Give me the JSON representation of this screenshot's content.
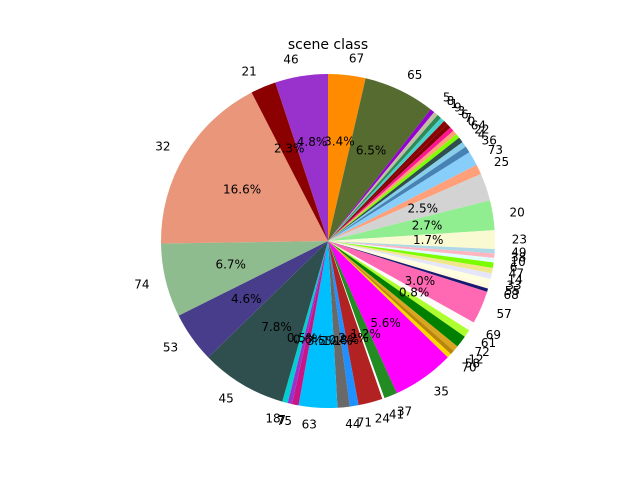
{
  "chart_data": {
    "type": "pie",
    "title": "scene class",
    "start_angle_deg": 90,
    "direction": "clockwise",
    "slices": [
      {
        "label": "67",
        "value": 3.4,
        "pct": "3.4%",
        "color": "#ff8c00",
        "show_pct": true
      },
      {
        "label": "65",
        "value": 6.5,
        "pct": "6.5%",
        "color": "#556b2f",
        "show_pct": true
      },
      {
        "label": "5",
        "value": 0.4,
        "pct": "0.4%",
        "color": "#9400d3",
        "show_pct": false
      },
      {
        "label": "8",
        "value": 0.4,
        "pct": "0.4%",
        "color": "#c0c0a0",
        "show_pct": false
      },
      {
        "label": "1",
        "value": 0.4,
        "pct": "0.4%",
        "color": "#2e8b57",
        "show_pct": false
      },
      {
        "label": "9",
        "value": 0.4,
        "pct": "0.4%",
        "color": "#48d1cc",
        "show_pct": false
      },
      {
        "label": "3",
        "value": 0.4,
        "pct": "0.4%",
        "color": "#8b0000",
        "show_pct": false
      },
      {
        "label": "6",
        "value": 0.4,
        "pct": "0.4%",
        "color": "#800000",
        "show_pct": false
      },
      {
        "label": "7",
        "value": 0.4,
        "pct": "0.4%",
        "color": "#ff1493",
        "show_pct": false
      },
      {
        "label": "0",
        "value": 0.4,
        "pct": "0.4%",
        "color": "#ffa07a",
        "show_pct": false
      },
      {
        "label": "64",
        "value": 0.4,
        "pct": "0.4%",
        "color": "#7fff00",
        "show_pct": false
      },
      {
        "label": "22",
        "value": 0.5,
        "pct": "0.5%",
        "color": "#2f4f4f",
        "show_pct": false
      },
      {
        "label": "4",
        "value": 0.5,
        "pct": "0.5%",
        "color": "#87ceeb",
        "show_pct": false
      },
      {
        "label": "36",
        "value": 0.6,
        "pct": "0.6%",
        "color": "#4682b4",
        "show_pct": false
      },
      {
        "label": "73",
        "value": 1.3,
        "pct": "1.3%",
        "color": "#87cefa",
        "show_pct": false
      },
      {
        "label": "25",
        "value": 0.9,
        "pct": "0.9%",
        "color": "#ffa07a",
        "show_pct": false
      },
      {
        "label": "",
        "value": 2.5,
        "pct": "2.5%",
        "color": "#d3d3d3",
        "show_pct": true
      },
      {
        "label": "20",
        "value": 2.7,
        "pct": "2.7%",
        "color": "#90ee90",
        "show_pct": true
      },
      {
        "label": "23",
        "value": 1.7,
        "pct": "1.7%",
        "color": "#fafad2",
        "show_pct": true
      },
      {
        "label": "49",
        "value": 0.4,
        "pct": "0.4%",
        "color": "#add8e6",
        "show_pct": false
      },
      {
        "label": "38",
        "value": 0.4,
        "pct": "0.4%",
        "color": "#ffb6c1",
        "show_pct": false
      },
      {
        "label": "10",
        "value": 0.4,
        "pct": "0.4%",
        "color": "#e0ffff",
        "show_pct": false
      },
      {
        "label": "6",
        "value": 0.5,
        "pct": "0.5%",
        "color": "#7cfc00",
        "show_pct": false
      },
      {
        "label": "47",
        "value": 0.5,
        "pct": "0.5%",
        "color": "#f0e68c",
        "show_pct": false
      },
      {
        "label": "14",
        "value": 0.5,
        "pct": "0.5%",
        "color": "#e6e6fa",
        "show_pct": false
      },
      {
        "label": "33",
        "value": 0.5,
        "pct": "0.5%",
        "color": "#ffffe0",
        "show_pct": false
      },
      {
        "label": "55",
        "value": 0.4,
        "pct": "0.4%",
        "color": "#fff8dc",
        "show_pct": false
      },
      {
        "label": "68",
        "value": 0.3,
        "pct": "0.3%",
        "color": "#191970",
        "show_pct": false
      },
      {
        "label": "57",
        "value": 3.0,
        "pct": "3.0%",
        "color": "#ff69b4",
        "show_pct": true
      },
      {
        "label": "69",
        "value": 0.8,
        "pct": "0.8%",
        "color": "#fffafa",
        "show_pct": true
      },
      {
        "label": "61",
        "value": 0.7,
        "pct": "0.7%",
        "color": "#adff2f",
        "show_pct": false
      },
      {
        "label": "72",
        "value": 1.1,
        "pct": "1.1%",
        "color": "#008000",
        "show_pct": false
      },
      {
        "label": "12",
        "value": 0.5,
        "pct": "0.5%",
        "color": "#daa520",
        "show_pct": false
      },
      {
        "label": "58",
        "value": 0.4,
        "pct": "0.4%",
        "color": "#b8860b",
        "show_pct": false
      },
      {
        "label": "70",
        "value": 0.4,
        "pct": "0.4%",
        "color": "#ffd700",
        "show_pct": false
      },
      {
        "label": "35",
        "value": 5.6,
        "pct": "5.6%",
        "color": "#ff00ff",
        "show_pct": true
      },
      {
        "label": "37",
        "value": 1.2,
        "pct": "1.2%",
        "color": "#228b22",
        "show_pct": true
      },
      {
        "label": "41",
        "value": 0.2,
        "pct": "0.2%",
        "color": "#ffffff",
        "show_pct": false
      },
      {
        "label": "24",
        "value": 2.2,
        "pct": "2.2%",
        "color": "#b22222",
        "show_pct": true
      },
      {
        "label": "71",
        "value": 0.8,
        "pct": "0.8%",
        "color": "#1e90ff",
        "show_pct": true
      },
      {
        "label": "44",
        "value": 1.1,
        "pct": "1.1%",
        "color": "#696969",
        "show_pct": true
      },
      {
        "label": "63",
        "value": 3.5,
        "pct": "3.5%",
        "color": "#00bfff",
        "show_pct": true
      },
      {
        "label": "75",
        "value": 0.6,
        "pct": "0.6%",
        "color": "#c71585",
        "show_pct": true
      },
      {
        "label": "7",
        "value": 0.4,
        "pct": "0.4%",
        "color": "#9932cc",
        "show_pct": false
      },
      {
        "label": "18",
        "value": 0.5,
        "pct": "0.5%",
        "color": "#00ced1",
        "show_pct": true
      },
      {
        "label": "45",
        "value": 7.8,
        "pct": "7.8%",
        "color": "#2f4f4f",
        "show_pct": true
      },
      {
        "label": "53",
        "value": 4.6,
        "pct": "4.6%",
        "color": "#483d8b",
        "show_pct": true
      },
      {
        "label": "74",
        "value": 6.7,
        "pct": "6.7%",
        "color": "#8fbc8f",
        "show_pct": true
      },
      {
        "label": "32",
        "value": 16.6,
        "pct": "16.6%",
        "color": "#e9967a",
        "show_pct": true
      },
      {
        "label": "21",
        "value": 2.3,
        "pct": "2.3%",
        "color": "#8b0000",
        "show_pct": true
      },
      {
        "label": "46",
        "value": 4.8,
        "pct": "4.8%",
        "color": "#9932cc",
        "show_pct": true
      }
    ]
  }
}
